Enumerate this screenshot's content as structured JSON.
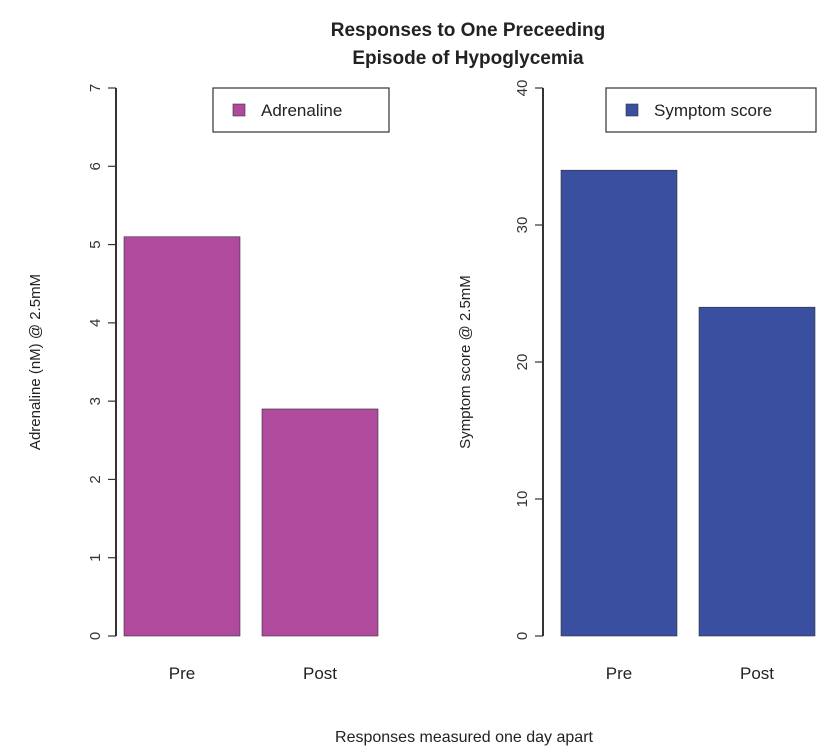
{
  "title_line1": "Responses to One Preceeding",
  "title_line2": "Episode of Hypoglycemia",
  "xlabel": "Responses measured one day apart",
  "chart_data": [
    {
      "type": "bar",
      "categories": [
        "Pre",
        "Post"
      ],
      "series": [
        {
          "name": "Adrenaline",
          "values": [
            5.1,
            2.9
          ]
        }
      ],
      "ylabel": "Adrenaline (nM) @ 2.5mM",
      "ylim": [
        0,
        7
      ],
      "yticks": [
        0,
        1,
        2,
        3,
        4,
        5,
        6,
        7
      ],
      "color": "#b04a9c",
      "legend": "top-right",
      "grid": false
    },
    {
      "type": "bar",
      "categories": [
        "Pre",
        "Post"
      ],
      "series": [
        {
          "name": "Symptom score",
          "values": [
            34,
            24
          ]
        }
      ],
      "ylabel": "Symptom score @ 2.5mM",
      "ylim": [
        0,
        40
      ],
      "yticks": [
        0,
        10,
        20,
        30,
        40
      ],
      "color": "#3a4fa0",
      "legend": "top-right",
      "grid": false
    }
  ]
}
